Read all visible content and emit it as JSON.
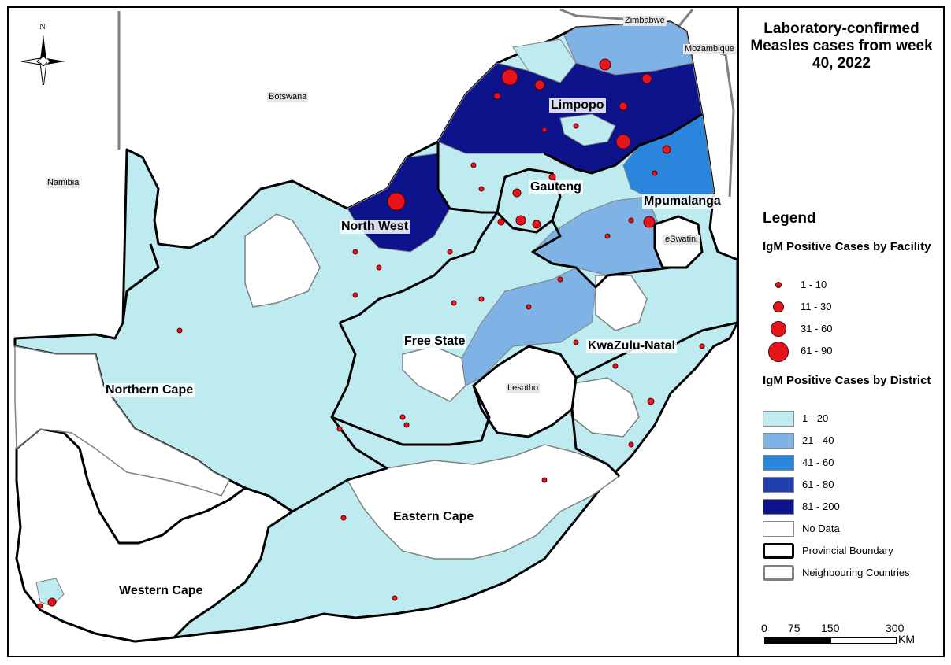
{
  "title": "Laboratory-confirmed Measles cases from week 40, 2022",
  "colors": {
    "d_1_20": "#bdebf0",
    "d_21_40": "#7fb2e5",
    "d_41_60": "#2a86dc",
    "d_61_80": "#1f3fad",
    "d_81_200": "#0d138a",
    "no_data": "#ffffff",
    "facility_dot": "#e8141c"
  },
  "compass": {
    "label": "N"
  },
  "provinces": {
    "limpopo": "Limpopo",
    "gauteng": "Gauteng",
    "mpumalanga": "Mpumalanga",
    "north_west": "North West",
    "free_state": "Free State",
    "kwazulu_natal": "KwaZulu-Natal",
    "northern_cape": "Northern Cape",
    "eastern_cape": "Eastern Cape",
    "western_cape": "Western Cape"
  },
  "countries": {
    "zimbabwe": "Zimbabwe",
    "mozambique": "Mozambique",
    "botswana": "Botswana",
    "namibia": "Namibia",
    "eswatini": "eSwatini",
    "lesotho": "Lesotho"
  },
  "legend": {
    "heading": "Legend",
    "facility_heading": "IgM Positive Cases by Facility",
    "facility_classes": [
      "1 - 10",
      "11 - 30",
      "31 - 60",
      "61 - 90"
    ],
    "district_heading": "IgM Positive Cases by District",
    "district_classes": [
      "1 - 20",
      "21 - 40",
      "41 - 60",
      "61 - 80",
      "81 - 200",
      "No Data"
    ],
    "provincial_boundary": "Provincial Boundary",
    "neighbouring_countries": "Neighbouring Countries"
  },
  "scale_bar": {
    "ticks": [
      "0",
      "75",
      "150",
      "300"
    ],
    "unit": "KM"
  }
}
